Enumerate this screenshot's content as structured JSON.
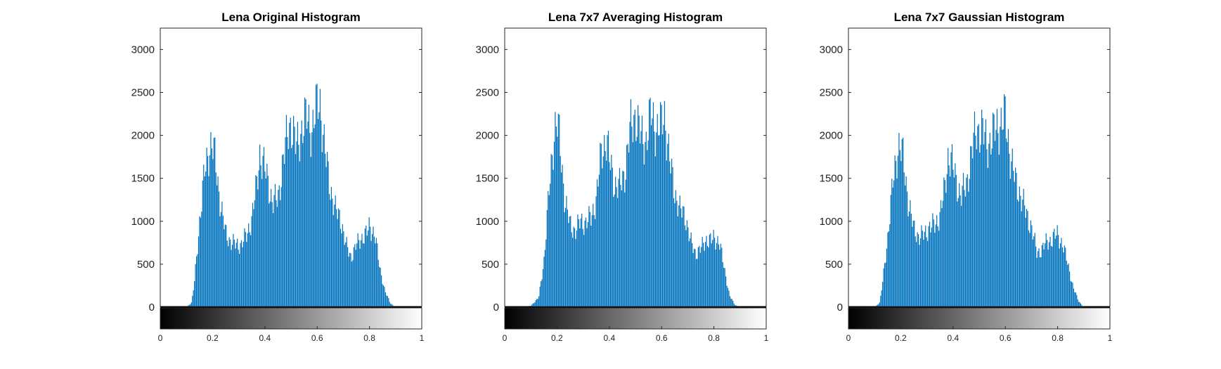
{
  "chart_data": [
    {
      "type": "bar",
      "title": "Lena Original Histogram",
      "xlabel": "",
      "ylabel": "",
      "ylim": [
        0,
        3250
      ],
      "xlim": [
        0,
        1
      ],
      "yticks": [
        "0",
        "500",
        "1000",
        "1500",
        "2000",
        "2500",
        "3000"
      ],
      "xticks": [
        "0",
        "0.2",
        "0.4",
        "0.6",
        "0.8",
        "1"
      ],
      "bar_color": "#0072BD",
      "colorbar": "gray",
      "grid": false,
      "profile": [
        [
          0.0,
          0
        ],
        [
          0.1,
          0
        ],
        [
          0.12,
          60
        ],
        [
          0.13,
          300
        ],
        [
          0.15,
          1100
        ],
        [
          0.17,
          1750
        ],
        [
          0.19,
          2100
        ],
        [
          0.2,
          2080
        ],
        [
          0.21,
          1900
        ],
        [
          0.23,
          1350
        ],
        [
          0.25,
          950
        ],
        [
          0.27,
          850
        ],
        [
          0.29,
          800
        ],
        [
          0.31,
          820
        ],
        [
          0.33,
          920
        ],
        [
          0.35,
          1150
        ],
        [
          0.37,
          1600
        ],
        [
          0.38,
          2000
        ],
        [
          0.39,
          1900
        ],
        [
          0.41,
          1650
        ],
        [
          0.43,
          1350
        ],
        [
          0.45,
          1400
        ],
        [
          0.47,
          1900
        ],
        [
          0.49,
          2300
        ],
        [
          0.5,
          2400
        ],
        [
          0.52,
          2050
        ],
        [
          0.54,
          2300
        ],
        [
          0.56,
          2450
        ],
        [
          0.58,
          2300
        ],
        [
          0.6,
          2600
        ],
        [
          0.61,
          2700
        ],
        [
          0.63,
          2000
        ],
        [
          0.65,
          1550
        ],
        [
          0.67,
          1250
        ],
        [
          0.69,
          1150
        ],
        [
          0.71,
          800
        ],
        [
          0.73,
          650
        ],
        [
          0.75,
          800
        ],
        [
          0.77,
          900
        ],
        [
          0.79,
          950
        ],
        [
          0.8,
          1050
        ],
        [
          0.82,
          950
        ],
        [
          0.84,
          500
        ],
        [
          0.86,
          200
        ],
        [
          0.88,
          50
        ],
        [
          0.9,
          0
        ],
        [
          1.0,
          0
        ]
      ]
    },
    {
      "type": "bar",
      "title": "Lena 7x7 Averaging Histogram",
      "xlabel": "",
      "ylabel": "",
      "ylim": [
        0,
        3250
      ],
      "xlim": [
        0,
        1
      ],
      "yticks": [
        "0",
        "500",
        "1000",
        "1500",
        "2000",
        "2500",
        "3000"
      ],
      "xticks": [
        "0",
        "0.2",
        "0.4",
        "0.6",
        "0.8",
        "1"
      ],
      "bar_color": "#0072BD",
      "colorbar": "gray",
      "grid": false,
      "profile": [
        [
          0.0,
          0
        ],
        [
          0.07,
          0
        ],
        [
          0.1,
          20
        ],
        [
          0.13,
          120
        ],
        [
          0.15,
          600
        ],
        [
          0.17,
          1500
        ],
        [
          0.19,
          2300
        ],
        [
          0.2,
          2400
        ],
        [
          0.21,
          2150
        ],
        [
          0.23,
          1400
        ],
        [
          0.25,
          1050
        ],
        [
          0.27,
          1000
        ],
        [
          0.29,
          1100
        ],
        [
          0.31,
          1100
        ],
        [
          0.33,
          1150
        ],
        [
          0.35,
          1400
        ],
        [
          0.37,
          2000
        ],
        [
          0.39,
          2200
        ],
        [
          0.4,
          1900
        ],
        [
          0.42,
          1600
        ],
        [
          0.44,
          1550
        ],
        [
          0.46,
          1750
        ],
        [
          0.48,
          2300
        ],
        [
          0.5,
          2500
        ],
        [
          0.52,
          2200
        ],
        [
          0.54,
          2150
        ],
        [
          0.56,
          2500
        ],
        [
          0.58,
          2300
        ],
        [
          0.6,
          2350
        ],
        [
          0.61,
          2550
        ],
        [
          0.63,
          1900
        ],
        [
          0.65,
          1500
        ],
        [
          0.67,
          1250
        ],
        [
          0.69,
          1200
        ],
        [
          0.71,
          850
        ],
        [
          0.73,
          700
        ],
        [
          0.75,
          750
        ],
        [
          0.77,
          880
        ],
        [
          0.79,
          850
        ],
        [
          0.8,
          900
        ],
        [
          0.82,
          850
        ],
        [
          0.84,
          500
        ],
        [
          0.86,
          150
        ],
        [
          0.88,
          30
        ],
        [
          0.9,
          0
        ],
        [
          1.0,
          0
        ]
      ]
    },
    {
      "type": "bar",
      "title": "Lena 7x7 Gaussian Histogram",
      "xlabel": "",
      "ylabel": "",
      "ylim": [
        0,
        3250
      ],
      "xlim": [
        0,
        1
      ],
      "yticks": [
        "0",
        "500",
        "1000",
        "1500",
        "2000",
        "2500",
        "3000"
      ],
      "xticks": [
        "0",
        "0.2",
        "0.4",
        "0.6",
        "0.8",
        "1"
      ],
      "bar_color": "#0072BD",
      "colorbar": "gray",
      "grid": false,
      "profile": [
        [
          0.0,
          0
        ],
        [
          0.1,
          0
        ],
        [
          0.12,
          60
        ],
        [
          0.13,
          300
        ],
        [
          0.15,
          900
        ],
        [
          0.17,
          1600
        ],
        [
          0.19,
          2100
        ],
        [
          0.2,
          2050
        ],
        [
          0.21,
          1900
        ],
        [
          0.23,
          1350
        ],
        [
          0.25,
          1000
        ],
        [
          0.27,
          920
        ],
        [
          0.29,
          930
        ],
        [
          0.31,
          1050
        ],
        [
          0.33,
          1050
        ],
        [
          0.35,
          1200
        ],
        [
          0.37,
          1550
        ],
        [
          0.38,
          1950
        ],
        [
          0.39,
          1950
        ],
        [
          0.41,
          1650
        ],
        [
          0.43,
          1450
        ],
        [
          0.45,
          1550
        ],
        [
          0.47,
          2000
        ],
        [
          0.49,
          2300
        ],
        [
          0.51,
          2300
        ],
        [
          0.53,
          2100
        ],
        [
          0.55,
          2200
        ],
        [
          0.57,
          2350
        ],
        [
          0.59,
          2400
        ],
        [
          0.6,
          2450
        ],
        [
          0.62,
          1950
        ],
        [
          0.64,
          1600
        ],
        [
          0.66,
          1450
        ],
        [
          0.68,
          1200
        ],
        [
          0.7,
          1050
        ],
        [
          0.72,
          700
        ],
        [
          0.74,
          750
        ],
        [
          0.76,
          850
        ],
        [
          0.78,
          880
        ],
        [
          0.8,
          950
        ],
        [
          0.82,
          800
        ],
        [
          0.84,
          550
        ],
        [
          0.86,
          250
        ],
        [
          0.88,
          80
        ],
        [
          0.9,
          0
        ],
        [
          1.0,
          0
        ]
      ]
    }
  ]
}
